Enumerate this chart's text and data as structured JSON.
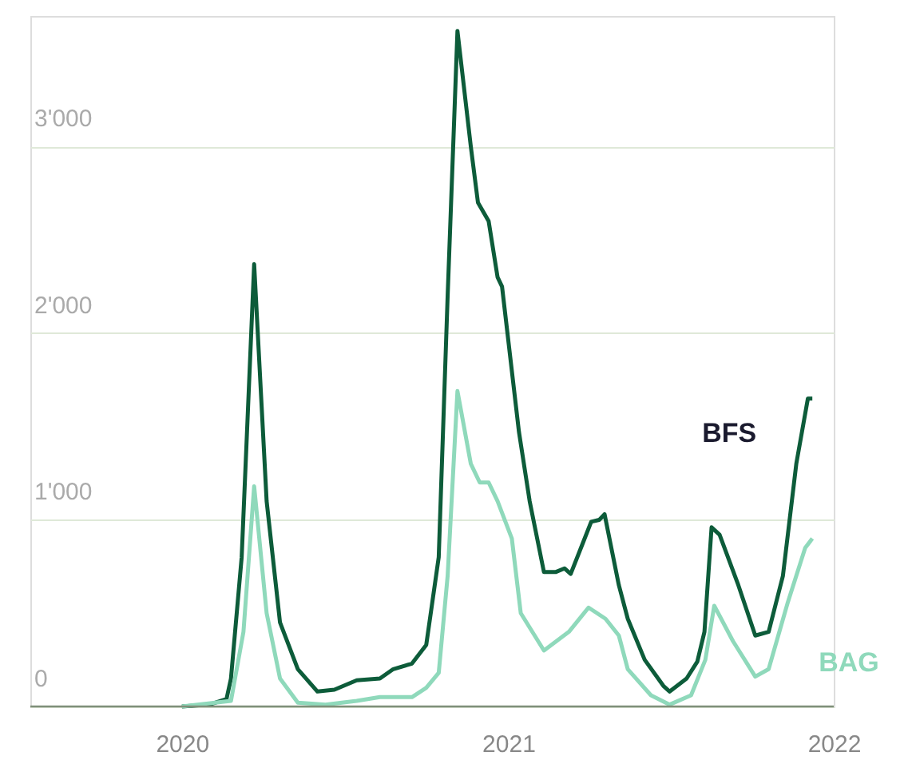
{
  "chart_data": {
    "type": "line",
    "xlim": [
      "2019-07-15",
      "2022-01-01"
    ],
    "xticks": [
      "2020",
      "2021",
      "2022"
    ],
    "ylim": [
      0,
      3700
    ],
    "yticks": [
      0,
      {
        "value": 1000,
        "label": "1'000"
      },
      {
        "value": 2000,
        "label": "2'000"
      },
      {
        "value": 3000,
        "label": "3'000"
      }
    ],
    "grid": "y",
    "legend": false,
    "series": [
      {
        "name": "BFS",
        "color": "#0d5c3a",
        "x": [
          "2020-01-01",
          "2020-02-01",
          "2020-02-20",
          "2020-02-25",
          "2020-03-08",
          "2020-03-22",
          "2020-04-05",
          "2020-04-20",
          "2020-05-10",
          "2020-06-01",
          "2020-06-20",
          "2020-07-15",
          "2020-08-10",
          "2020-08-25",
          "2020-09-15",
          "2020-10-01",
          "2020-10-15",
          "2020-10-25",
          "2020-11-05",
          "2020-11-20",
          "2020-11-28",
          "2020-12-10",
          "2020-12-20",
          "2020-12-25",
          "2021-01-13",
          "2021-01-25",
          "2021-02-10",
          "2021-02-23",
          "2021-03-05",
          "2021-03-12",
          "2021-03-26",
          "2021-04-04",
          "2021-04-13",
          "2021-04-19",
          "2021-05-05",
          "2021-05-15",
          "2021-06-03",
          "2021-06-24",
          "2021-07-01",
          "2021-07-20",
          "2021-08-01",
          "2021-08-09",
          "2021-08-17",
          "2021-08-26",
          "2021-09-16",
          "2021-10-05",
          "2021-10-20",
          "2021-11-05",
          "2021-11-20",
          "2021-12-03",
          "2021-12-08"
        ],
        "values": [
          0,
          10,
          40,
          150,
          800,
          2370,
          1100,
          450,
          200,
          80,
          90,
          140,
          150,
          200,
          230,
          330,
          800,
          2200,
          3620,
          3000,
          2700,
          2600,
          2300,
          2250,
          1470,
          1100,
          720,
          720,
          740,
          710,
          880,
          990,
          1000,
          1030,
          650,
          470,
          250,
          110,
          80,
          150,
          240,
          400,
          960,
          920,
          650,
          380,
          400,
          700,
          1300,
          1650,
          1650
        ]
      },
      {
        "name": "BAG",
        "color": "#8fd9bb",
        "x": [
          "2020-01-01",
          "2020-02-25",
          "2020-03-10",
          "2020-03-22",
          "2020-04-05",
          "2020-04-20",
          "2020-05-10",
          "2020-06-10",
          "2020-07-15",
          "2020-08-10",
          "2020-09-15",
          "2020-10-01",
          "2020-10-15",
          "2020-10-25",
          "2020-11-05",
          "2020-11-20",
          "2020-11-30",
          "2020-12-10",
          "2020-12-20",
          "2021-01-05",
          "2021-01-15",
          "2021-02-10",
          "2021-03-10",
          "2021-04-01",
          "2021-04-20",
          "2021-05-05",
          "2021-05-15",
          "2021-06-10",
          "2021-07-01",
          "2021-07-25",
          "2021-08-10",
          "2021-08-20",
          "2021-09-10",
          "2021-10-05",
          "2021-10-20",
          "2021-11-10",
          "2021-11-30",
          "2021-12-08"
        ],
        "values": [
          0,
          30,
          400,
          1180,
          500,
          150,
          20,
          10,
          30,
          50,
          50,
          100,
          180,
          700,
          1690,
          1300,
          1200,
          1200,
          1100,
          900,
          500,
          300,
          400,
          530,
          470,
          380,
          200,
          60,
          10,
          60,
          250,
          540,
          350,
          160,
          200,
          550,
          850,
          900
        ]
      }
    ]
  }
}
